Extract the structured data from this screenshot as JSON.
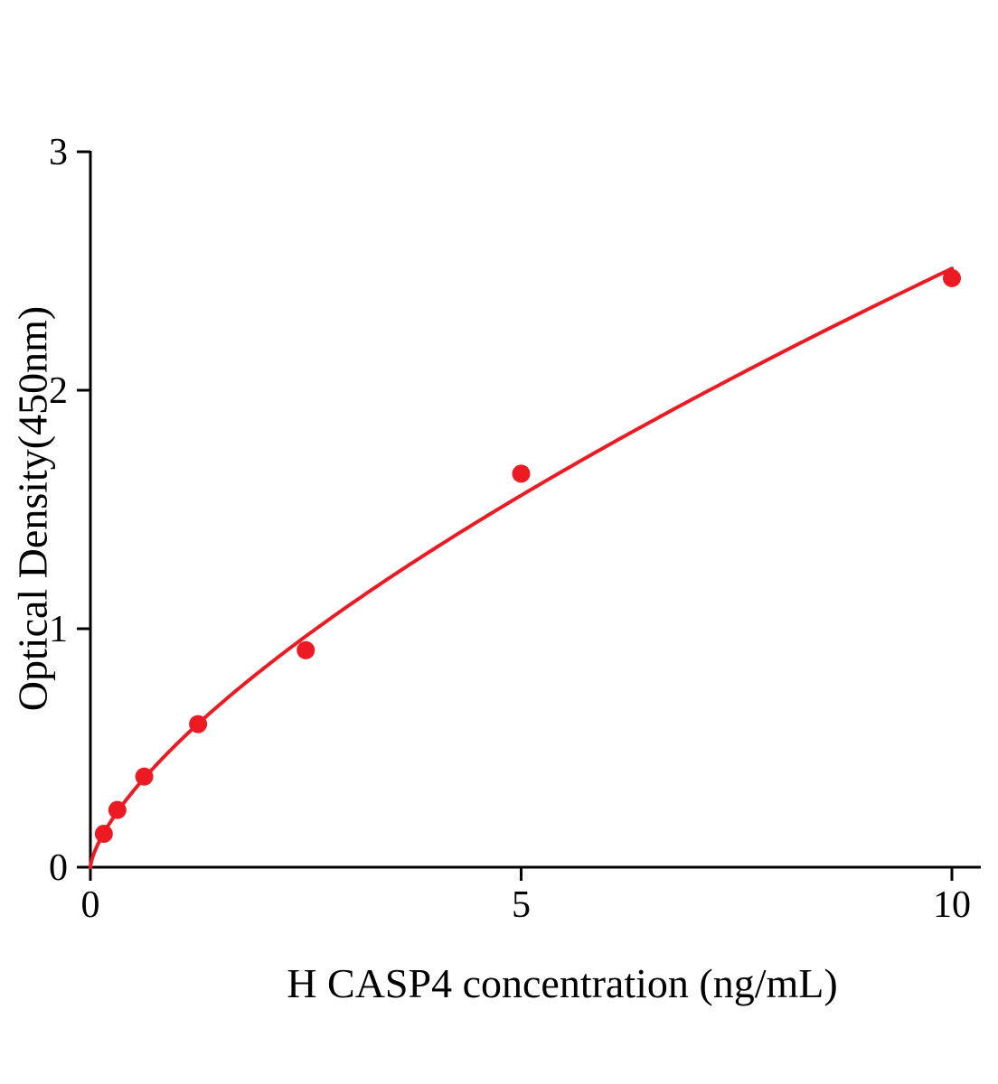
{
  "chart_data": {
    "type": "scatter",
    "title": "",
    "xlabel": "H CASP4 concentration (ng/mL)",
    "ylabel": "Optical Density(450nm)",
    "x": [
      0.156,
      0.313,
      0.625,
      1.25,
      2.5,
      5,
      10
    ],
    "y": [
      0.14,
      0.24,
      0.38,
      0.6,
      0.91,
      1.65,
      2.47
    ],
    "x_ticks": [
      0,
      5,
      10
    ],
    "y_ticks": [
      0,
      1,
      2,
      3
    ],
    "xlim": [
      0,
      10
    ],
    "ylim": [
      0,
      3
    ],
    "grid": false,
    "legend": "none",
    "curve": "power-law fit through data points, anchored at origin",
    "point_color": "#ec1b23",
    "line_color": "#ec1b23",
    "axis_color": "#000000",
    "background": "#ffffff"
  }
}
